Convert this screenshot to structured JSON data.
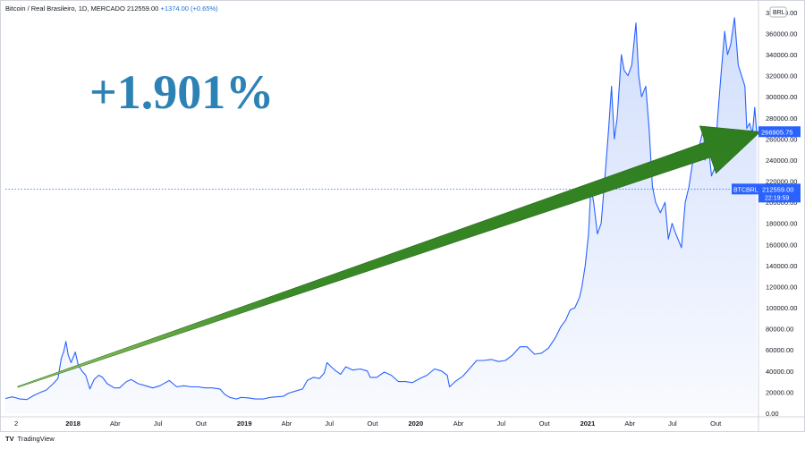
{
  "header": {
    "symbol": "Bitcoin / Real Brasileiro, 1D, MERCADO",
    "price": "212559.00",
    "change": "+1374.00 (+0.65%)"
  },
  "annotation": {
    "big_text": "+1.901%"
  },
  "branding": {
    "logo": "TV",
    "text": "TradingView"
  },
  "currency_label": "BRL",
  "colors": {
    "line": "#2962ff",
    "fill_top": "#c9d8fb",
    "arrow": "#3a8a28",
    "big_text": "#2d82b5",
    "badge": "#2962ff"
  },
  "chart_data": {
    "type": "area",
    "title": "",
    "symbol": "BTCBRL",
    "x_ticks": [
      {
        "label": "2",
        "d": "2017-09-02"
      },
      {
        "label": "2018",
        "d": "2018-01-01"
      },
      {
        "label": "Abr",
        "d": "2018-04-01"
      },
      {
        "label": "Jul",
        "d": "2018-07-01"
      },
      {
        "label": "Out",
        "d": "2018-10-01"
      },
      {
        "label": "2019",
        "d": "2019-01-01"
      },
      {
        "label": "Abr",
        "d": "2019-04-01"
      },
      {
        "label": "Jul",
        "d": "2019-07-01"
      },
      {
        "label": "Out",
        "d": "2019-10-01"
      },
      {
        "label": "2020",
        "d": "2020-01-01"
      },
      {
        "label": "Abr",
        "d": "2020-04-01"
      },
      {
        "label": "Jul",
        "d": "2020-07-01"
      },
      {
        "label": "Out",
        "d": "2020-10-01"
      },
      {
        "label": "2021",
        "d": "2021-01-01"
      },
      {
        "label": "Abr",
        "d": "2021-04-01"
      },
      {
        "label": "Jul",
        "d": "2021-07-01"
      },
      {
        "label": "Out",
        "d": "2021-10-01"
      }
    ],
    "y_ticks": [
      0,
      20000,
      40000,
      60000,
      80000,
      100000,
      120000,
      140000,
      160000,
      180000,
      200000,
      220000,
      240000,
      260000,
      280000,
      300000,
      320000,
      340000,
      360000,
      380000
    ],
    "y_tick_labels": [
      "0.00",
      "20000.00",
      "40000.00",
      "60000.00",
      "80000.00",
      "100000.00",
      "120000.00",
      "140000.00",
      "160000.00",
      "180000.00",
      "200000.00",
      "220000.00",
      "240000.00",
      "260000.00",
      "280000.00",
      "300000.00",
      "320000.00",
      "340000.00",
      "360000.00",
      "380000.00"
    ],
    "ylim": [
      0,
      385000
    ],
    "x_range": [
      "2017-08-10",
      "2021-12-31"
    ],
    "price_labels": [
      {
        "value": 266905.75,
        "text": "266905.75"
      },
      {
        "value": 212559.0,
        "text": "212559.00",
        "sub": "22:19:59",
        "tag": "BTCBRL"
      }
    ],
    "series": [
      {
        "values": [
          [
            "2017-08-10",
            14000
          ],
          [
            "2017-08-25",
            15500
          ],
          [
            "2017-09-10",
            13500
          ],
          [
            "2017-09-25",
            13000
          ],
          [
            "2017-10-10",
            17000
          ],
          [
            "2017-10-25",
            20000
          ],
          [
            "2017-11-05",
            22000
          ],
          [
            "2017-11-20",
            28000
          ],
          [
            "2017-11-30",
            33000
          ],
          [
            "2017-12-07",
            52000
          ],
          [
            "2017-12-12",
            58000
          ],
          [
            "2017-12-17",
            68000
          ],
          [
            "2017-12-22",
            55000
          ],
          [
            "2017-12-28",
            48000
          ],
          [
            "2018-01-06",
            58000
          ],
          [
            "2018-01-12",
            46000
          ],
          [
            "2018-01-20",
            40000
          ],
          [
            "2018-01-28",
            36000
          ],
          [
            "2018-02-06",
            23000
          ],
          [
            "2018-02-15",
            32000
          ],
          [
            "2018-02-25",
            36000
          ],
          [
            "2018-03-05",
            34000
          ],
          [
            "2018-03-15",
            28000
          ],
          [
            "2018-03-30",
            24000
          ],
          [
            "2018-04-10",
            24000
          ],
          [
            "2018-04-25",
            30000
          ],
          [
            "2018-05-05",
            32000
          ],
          [
            "2018-05-20",
            28000
          ],
          [
            "2018-06-05",
            26000
          ],
          [
            "2018-06-20",
            24000
          ],
          [
            "2018-07-05",
            26000
          ],
          [
            "2018-07-25",
            31000
          ],
          [
            "2018-08-10",
            25000
          ],
          [
            "2018-08-25",
            26000
          ],
          [
            "2018-09-10",
            25000
          ],
          [
            "2018-09-25",
            25000
          ],
          [
            "2018-10-10",
            24000
          ],
          [
            "2018-10-25",
            24000
          ],
          [
            "2018-11-10",
            23000
          ],
          [
            "2018-11-20",
            18000
          ],
          [
            "2018-12-01",
            15000
          ],
          [
            "2018-12-15",
            13500
          ],
          [
            "2018-12-25",
            15000
          ],
          [
            "2019-01-10",
            14500
          ],
          [
            "2019-01-25",
            13500
          ],
          [
            "2019-02-10",
            13500
          ],
          [
            "2019-02-25",
            15000
          ],
          [
            "2019-03-10",
            15500
          ],
          [
            "2019-03-25",
            16000
          ],
          [
            "2019-04-05",
            19000
          ],
          [
            "2019-04-20",
            21000
          ],
          [
            "2019-05-05",
            23000
          ],
          [
            "2019-05-15",
            31000
          ],
          [
            "2019-05-28",
            34000
          ],
          [
            "2019-06-10",
            33000
          ],
          [
            "2019-06-20",
            38000
          ],
          [
            "2019-06-26",
            48000
          ],
          [
            "2019-07-05",
            44000
          ],
          [
            "2019-07-15",
            40000
          ],
          [
            "2019-07-25",
            37000
          ],
          [
            "2019-08-05",
            44000
          ],
          [
            "2019-08-20",
            41000
          ],
          [
            "2019-09-05",
            42000
          ],
          [
            "2019-09-20",
            40000
          ],
          [
            "2019-09-26",
            34000
          ],
          [
            "2019-10-10",
            34000
          ],
          [
            "2019-10-26",
            39000
          ],
          [
            "2019-11-10",
            36000
          ],
          [
            "2019-11-25",
            30000
          ],
          [
            "2019-12-10",
            30000
          ],
          [
            "2019-12-25",
            29000
          ],
          [
            "2020-01-10",
            33000
          ],
          [
            "2020-01-25",
            36000
          ],
          [
            "2020-02-10",
            42000
          ],
          [
            "2020-02-25",
            40000
          ],
          [
            "2020-03-08",
            36000
          ],
          [
            "2020-03-13",
            25000
          ],
          [
            "2020-03-25",
            30000
          ],
          [
            "2020-04-10",
            35000
          ],
          [
            "2020-04-30",
            45000
          ],
          [
            "2020-05-10",
            50000
          ],
          [
            "2020-05-25",
            50000
          ],
          [
            "2020-06-10",
            51000
          ],
          [
            "2020-06-25",
            49000
          ],
          [
            "2020-07-10",
            50000
          ],
          [
            "2020-07-25",
            55000
          ],
          [
            "2020-08-10",
            63000
          ],
          [
            "2020-08-25",
            63000
          ],
          [
            "2020-09-10",
            56000
          ],
          [
            "2020-09-25",
            57000
          ],
          [
            "2020-10-10",
            62000
          ],
          [
            "2020-10-25",
            72000
          ],
          [
            "2020-11-05",
            82000
          ],
          [
            "2020-11-15",
            88000
          ],
          [
            "2020-11-25",
            98000
          ],
          [
            "2020-12-05",
            100000
          ],
          [
            "2020-12-15",
            110000
          ],
          [
            "2020-12-20",
            120000
          ],
          [
            "2020-12-27",
            140000
          ],
          [
            "2021-01-03",
            170000
          ],
          [
            "2021-01-08",
            215000
          ],
          [
            "2021-01-14",
            200000
          ],
          [
            "2021-01-22",
            170000
          ],
          [
            "2021-01-30",
            180000
          ],
          [
            "2021-02-08",
            230000
          ],
          [
            "2021-02-15",
            270000
          ],
          [
            "2021-02-21",
            310000
          ],
          [
            "2021-02-27",
            260000
          ],
          [
            "2021-03-05",
            280000
          ],
          [
            "2021-03-14",
            340000
          ],
          [
            "2021-03-20",
            325000
          ],
          [
            "2021-03-28",
            320000
          ],
          [
            "2021-04-05",
            330000
          ],
          [
            "2021-04-14",
            370000
          ],
          [
            "2021-04-20",
            320000
          ],
          [
            "2021-04-26",
            300000
          ],
          [
            "2021-05-05",
            310000
          ],
          [
            "2021-05-12",
            270000
          ],
          [
            "2021-05-19",
            215000
          ],
          [
            "2021-05-26",
            200000
          ],
          [
            "2021-06-05",
            190000
          ],
          [
            "2021-06-15",
            200000
          ],
          [
            "2021-06-22",
            165000
          ],
          [
            "2021-06-30",
            180000
          ],
          [
            "2021-07-08",
            170000
          ],
          [
            "2021-07-20",
            157000
          ],
          [
            "2021-07-28",
            200000
          ],
          [
            "2021-08-05",
            215000
          ],
          [
            "2021-08-15",
            245000
          ],
          [
            "2021-08-25",
            250000
          ],
          [
            "2021-09-05",
            270000
          ],
          [
            "2021-09-08",
            240000
          ],
          [
            "2021-09-15",
            255000
          ],
          [
            "2021-09-22",
            225000
          ],
          [
            "2021-09-28",
            232000
          ],
          [
            "2021-10-05",
            280000
          ],
          [
            "2021-10-12",
            320000
          ],
          [
            "2021-10-20",
            362000
          ],
          [
            "2021-10-26",
            340000
          ],
          [
            "2021-11-02",
            350000
          ],
          [
            "2021-11-10",
            375000
          ],
          [
            "2021-11-18",
            330000
          ],
          [
            "2021-11-25",
            320000
          ],
          [
            "2021-12-02",
            310000
          ],
          [
            "2021-12-06",
            270000
          ],
          [
            "2021-12-12",
            275000
          ],
          [
            "2021-12-18",
            265000
          ],
          [
            "2021-12-23",
            290000
          ],
          [
            "2021-12-27",
            266906
          ]
        ]
      }
    ],
    "arrow": {
      "from": [
        "2017-08-10",
        25000
      ],
      "to": [
        "2021-12-31",
        266906
      ]
    }
  }
}
